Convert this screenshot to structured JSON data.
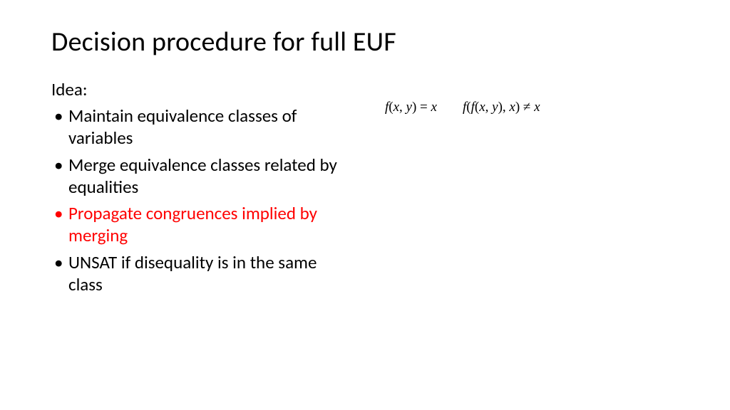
{
  "title": "Decision procedure for full EUF",
  "idea_label": "Idea:",
  "bullets": [
    {
      "text": "Maintain equivalence classes of variables",
      "color": "#000000"
    },
    {
      "text": "Merge equivalence classes related by equalities",
      "color": "#000000"
    },
    {
      "text": "Propagate congruences implied by merging",
      "color": "#ff0000"
    },
    {
      "text": "UNSAT if disequality is in the same class",
      "color": "#000000"
    }
  ],
  "formulas": {
    "left": "f(x, y) = x",
    "right": "f(f(x, y), x) ≠ x"
  },
  "styling": {
    "slide_width": 1024,
    "slide_height": 576,
    "background_color": "#ffffff",
    "title_fontsize": 38,
    "title_color": "#000000",
    "body_fontsize": 25,
    "bullet_black": "#000000",
    "bullet_red": "#ff0000",
    "formula_fontsize": 19,
    "font_body": "Calibri",
    "font_math": "Cambria Math"
  }
}
